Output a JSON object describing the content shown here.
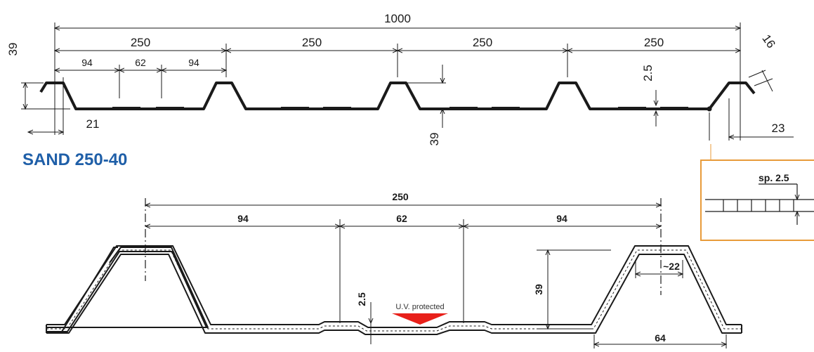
{
  "title": "SAND 250-40",
  "top_profile": {
    "overall_width": "1000",
    "pitch_1": "250",
    "pitch_2": "250",
    "pitch_3": "250",
    "pitch_4": "250",
    "flat_left": "94",
    "flat_mid": "62",
    "flat_right": "94",
    "height_left": "39",
    "height_mid": "39",
    "thickness": "2.5",
    "crest_width": "21",
    "edge_width": "23",
    "lip_angle": "16"
  },
  "detail_box": {
    "label": "sp. 2.5",
    "border_color": "#e89b3a"
  },
  "bottom_profile": {
    "pitch": "250",
    "flat_left": "94",
    "flat_mid": "62",
    "flat_right": "94",
    "height": "39",
    "thickness": "2.5",
    "crest_offset": "~22",
    "base_width": "64",
    "uv_label": "U.V. protected",
    "uv_color": "#e8201a"
  },
  "colors": {
    "title": "#1f5fa8",
    "line": "#1a1a1a"
  }
}
